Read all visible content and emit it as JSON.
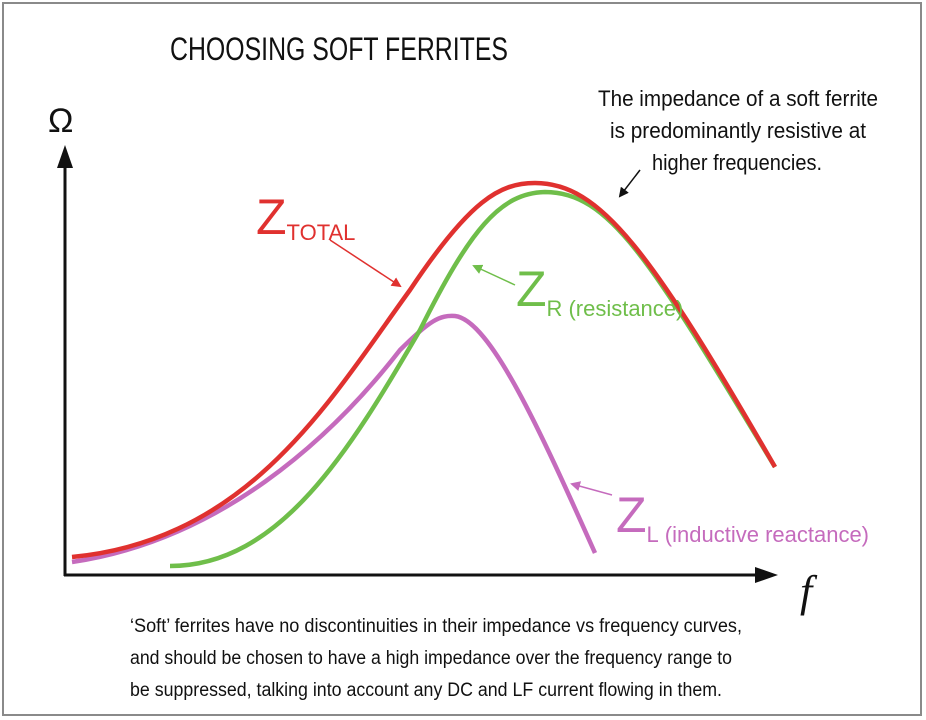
{
  "title": "CHOOSING SOFT FERRITES",
  "axes": {
    "y": "Ω",
    "x": "f"
  },
  "note": [
    "The impedance of a soft ferrite",
    "is predominantly resistive at",
    "higher frequencies."
  ],
  "curves": [
    {
      "symbol": "Z",
      "subscript": "TOTAL"
    },
    {
      "symbol": "Z",
      "subscript": "R",
      "description": "(resistance)"
    },
    {
      "symbol": "Z",
      "subscript": "L",
      "description": "(inductive reactance)"
    }
  ],
  "caption": [
    "‘Soft’ ferrites have no discontinuities in their impedance vs frequency curves,",
    "and should be chosen to have a high impedance over the frequency range to",
    "be suppressed, talking into account any DC and LF current flowing in them."
  ]
}
